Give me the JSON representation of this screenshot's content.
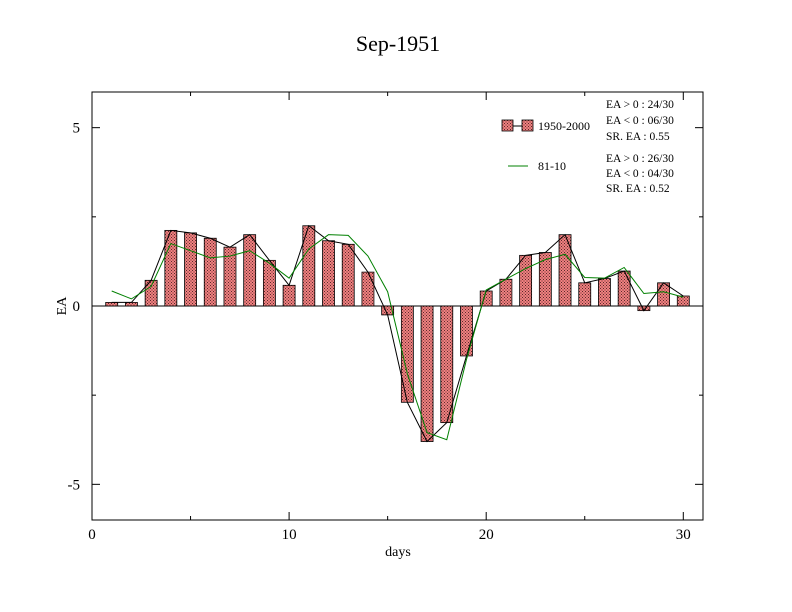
{
  "chart_data": {
    "type": "bar",
    "title": "Sep-1951",
    "xlabel": "days",
    "ylabel": "EA",
    "xlim": [
      0,
      31
    ],
    "ylim": [
      -6,
      6
    ],
    "xticks": [
      0,
      10,
      20,
      30
    ],
    "yticks": [
      -5,
      0,
      5
    ],
    "x": [
      1,
      2,
      3,
      4,
      5,
      6,
      7,
      8,
      9,
      10,
      11,
      12,
      13,
      14,
      15,
      16,
      17,
      18,
      19,
      20,
      21,
      22,
      23,
      24,
      25,
      26,
      27,
      28,
      29,
      30
    ],
    "series": [
      {
        "name": "1950-2000",
        "type": "bar+line",
        "values": [
          0.1,
          0.1,
          0.72,
          2.12,
          2.05,
          1.9,
          1.65,
          2.0,
          1.28,
          0.58,
          2.25,
          1.83,
          1.73,
          0.95,
          -0.25,
          -2.7,
          -3.8,
          -3.27,
          -1.4,
          0.42,
          0.75,
          1.42,
          1.5,
          2.0,
          0.65,
          0.77,
          0.98,
          -0.13,
          0.65,
          0.28
        ],
        "fill": "#f08080",
        "line_color": "#000000"
      },
      {
        "name": "81-10",
        "type": "line",
        "values": [
          0.42,
          0.2,
          0.55,
          1.75,
          1.55,
          1.35,
          1.4,
          1.55,
          1.2,
          0.78,
          1.6,
          2.0,
          1.98,
          1.4,
          0.4,
          -1.9,
          -3.55,
          -3.75,
          -1.5,
          0.45,
          0.75,
          1.05,
          1.3,
          1.45,
          0.8,
          0.78,
          1.08,
          0.35,
          0.4,
          0.25
        ],
        "line_color": "#008000"
      }
    ],
    "legend_position": "top-right",
    "stats": {
      "s1": [
        "EA > 0 : 24/30",
        "EA < 0 : 06/30",
        "SR. EA :  0.55"
      ],
      "s2": [
        "EA > 0 : 26/30",
        "EA < 0 : 04/30",
        "SR. EA :  0.52"
      ]
    }
  }
}
